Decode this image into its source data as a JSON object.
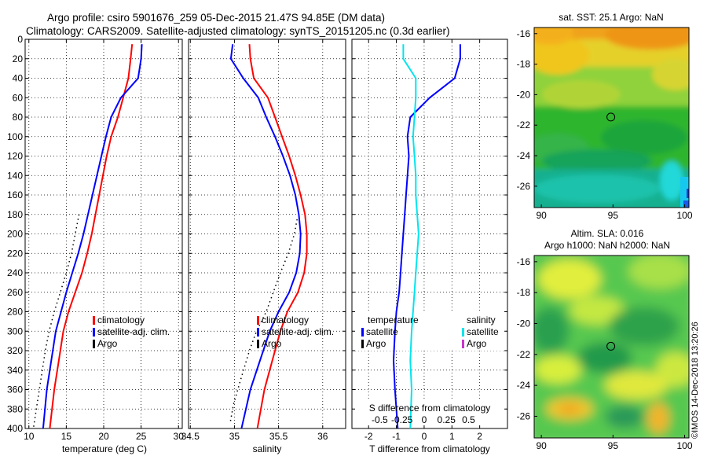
{
  "header": {
    "title_line1": "Argo profile: csiro 5901676_259 05-Dec-2015 21.47S 94.85E (DM data)",
    "title_line2": "Climatology: CARS2009. Satellite-adjusted climatology: synTS_20151205.nc (0.3d earlier)"
  },
  "stamp": "©IMOS 14-Dec-2018 13:20:26",
  "colors": {
    "climatology": "#ff0000",
    "satellite": "#0000ff",
    "argo": "#000000",
    "s_satellite": "#00e5ee",
    "s_argo": "#cc33cc"
  },
  "chart_data": [
    {
      "type": "line",
      "id": "temperature",
      "xlabel": "temperature (deg C)",
      "ylabel": "",
      "xlim": [
        9.5,
        30.5
      ],
      "ylim": [
        0,
        400
      ],
      "y_reversed": true,
      "xticks": [
        10,
        15,
        20,
        25,
        30
      ],
      "yticks": [
        0,
        20,
        40,
        60,
        80,
        100,
        120,
        140,
        160,
        180,
        200,
        220,
        240,
        260,
        280,
        300,
        320,
        340,
        360,
        380,
        400
      ],
      "grid": true,
      "legend_position": "right-middle",
      "series": [
        {
          "name": "climatology",
          "style": "solid",
          "x": [
            23.8,
            23.6,
            23.3,
            22.6,
            21.9,
            21.0,
            20.4,
            19.9,
            19.4,
            18.9,
            18.4,
            17.8,
            17.1,
            16.2,
            15.3,
            14.6,
            14.0,
            13.4,
            12.8
          ],
          "y": [
            5,
            20,
            40,
            60,
            80,
            100,
            120,
            140,
            160,
            180,
            200,
            220,
            240,
            260,
            280,
            300,
            330,
            360,
            400
          ]
        },
        {
          "name": "satellite-adj. clim.",
          "style": "solid",
          "x": [
            25.1,
            25.0,
            24.6,
            22.3,
            21.0,
            20.3,
            19.7,
            19.1,
            18.5,
            17.9,
            17.3,
            16.6,
            15.8,
            15.0,
            14.3,
            13.6,
            13.0,
            12.4,
            11.9
          ],
          "y": [
            5,
            20,
            40,
            60,
            80,
            100,
            120,
            140,
            160,
            180,
            200,
            220,
            240,
            260,
            280,
            300,
            330,
            360,
            400
          ]
        },
        {
          "name": "Argo",
          "style": "dotted",
          "x": [
            16.7,
            16.2,
            15.7,
            15.0,
            14.2,
            13.4,
            12.7,
            12.2,
            11.6,
            11.1,
            10.6
          ],
          "y": [
            180,
            200,
            220,
            240,
            260,
            280,
            300,
            320,
            350,
            375,
            400
          ]
        }
      ]
    },
    {
      "type": "line",
      "id": "salinity",
      "xlabel": "salinity",
      "ylabel": "",
      "xlim": [
        34.48,
        36.26
      ],
      "ylim": [
        0,
        400
      ],
      "y_reversed": true,
      "xticks": [
        34.5,
        35,
        35.5,
        36
      ],
      "grid": true,
      "legend_position": "right-middle",
      "series": [
        {
          "name": "climatology",
          "style": "solid",
          "x": [
            35.17,
            35.18,
            35.22,
            35.38,
            35.46,
            35.54,
            35.62,
            35.69,
            35.75,
            35.8,
            35.82,
            35.82,
            35.79,
            35.72,
            35.6,
            35.52,
            35.43,
            35.34,
            35.26
          ],
          "y": [
            5,
            20,
            40,
            60,
            80,
            100,
            120,
            140,
            160,
            180,
            200,
            220,
            240,
            260,
            280,
            300,
            330,
            360,
            400
          ]
        },
        {
          "name": "satellite-adj. clim.",
          "style": "solid",
          "x": [
            34.98,
            34.96,
            35.1,
            35.27,
            35.36,
            35.46,
            35.55,
            35.63,
            35.69,
            35.73,
            35.75,
            35.74,
            35.7,
            35.62,
            35.5,
            35.4,
            35.29,
            35.18,
            35.08
          ],
          "y": [
            5,
            20,
            40,
            60,
            80,
            100,
            120,
            140,
            160,
            180,
            200,
            220,
            240,
            260,
            280,
            300,
            330,
            360,
            400
          ]
        },
        {
          "name": "Argo",
          "style": "dotted",
          "x": [
            35.71,
            35.68,
            35.61,
            35.52,
            35.44,
            35.36,
            35.25,
            35.17,
            35.07,
            34.99,
            34.95
          ],
          "y": [
            185,
            200,
            220,
            240,
            260,
            280,
            300,
            320,
            350,
            375,
            395
          ]
        }
      ]
    },
    {
      "type": "line",
      "id": "difference",
      "xlabel": "T difference from climatology",
      "top_xlabel": "S difference from climatology",
      "xlim": [
        -2.6,
        3.0
      ],
      "ylim": [
        0,
        400
      ],
      "y_reversed": true,
      "xticks": [
        -2,
        -1,
        0,
        1,
        2
      ],
      "s_xticks": [
        -0.5,
        -0.25,
        0,
        0.25,
        0.5
      ],
      "s_tick_positions_in_T_units": [
        -1.6,
        -0.8,
        0,
        0.8,
        1.6
      ],
      "grid": true,
      "legend_position": "bottom-middle",
      "legend_headers": [
        "temperature",
        "salinity"
      ],
      "series": [
        {
          "name": "satellite",
          "group": "temperature",
          "style": "solid",
          "x": [
            1.3,
            1.3,
            1.1,
            0.2,
            -0.5,
            -0.6,
            -0.55,
            -0.6,
            -0.65,
            -0.7,
            -0.75,
            -0.8,
            -0.85,
            -0.9,
            -1.0,
            -1.05,
            -1.1,
            -1.05,
            -0.95
          ],
          "y": [
            5,
            20,
            40,
            60,
            80,
            100,
            120,
            140,
            160,
            180,
            200,
            220,
            240,
            260,
            280,
            300,
            330,
            360,
            400
          ]
        },
        {
          "name": "satellite",
          "group": "salinity",
          "style": "solid",
          "x": [
            -0.75,
            -0.75,
            -0.3,
            -0.3,
            -0.35,
            -0.4,
            -0.35,
            -0.3,
            -0.3,
            -0.25,
            -0.2,
            -0.25,
            -0.3,
            -0.35,
            -0.4,
            -0.45,
            -0.5,
            -0.45,
            -0.5
          ],
          "y": [
            5,
            20,
            40,
            60,
            80,
            100,
            120,
            140,
            160,
            180,
            200,
            220,
            240,
            260,
            280,
            300,
            330,
            360,
            400
          ]
        }
      ],
      "legend": [
        {
          "name": "satellite",
          "group": "temperature"
        },
        {
          "name": "Argo",
          "group": "temperature"
        },
        {
          "name": "satellite",
          "group": "salinity"
        },
        {
          "name": "Argo",
          "group": "salinity"
        }
      ]
    },
    {
      "type": "heatmap",
      "id": "sst_map",
      "title": "sat. SST: 25.1 Argo: NaN",
      "xlim": [
        89.5,
        100.3
      ],
      "ylim": [
        -27.4,
        -15.6
      ],
      "xticks": [
        90,
        95,
        100
      ],
      "yticks": [
        -16,
        -18,
        -20,
        -22,
        -24,
        -26
      ],
      "marker": {
        "x": 94.85,
        "y": -21.47
      }
    },
    {
      "type": "heatmap",
      "id": "sla_map",
      "title": "Altim. SLA: 0.016",
      "subtitle": "Argo h1000: NaN h2000: NaN",
      "xlim": [
        89.5,
        100.3
      ],
      "ylim": [
        -27.4,
        -15.6
      ],
      "xticks": [
        90,
        95,
        100
      ],
      "yticks": [
        -16,
        -18,
        -20,
        -22,
        -24,
        -26
      ],
      "marker": {
        "x": 94.85,
        "y": -21.47
      }
    }
  ]
}
